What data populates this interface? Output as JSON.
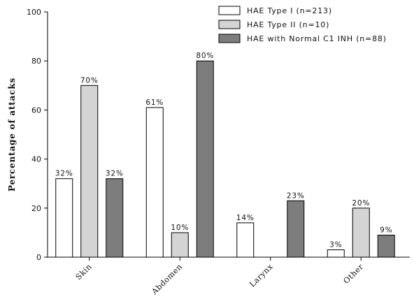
{
  "chart_data": {
    "type": "bar",
    "ylabel": "Percentage of attacks",
    "xlabel": "",
    "ylim": [
      0,
      100
    ],
    "yticks": [
      0,
      20,
      40,
      60,
      80,
      100
    ],
    "categories": [
      "Skin",
      "Abdomen",
      "Larynx",
      "Other"
    ],
    "series": [
      {
        "name": "HAE Type I (n=213)",
        "color": "#ffffff",
        "values": [
          32,
          61,
          14,
          3
        ],
        "labels": [
          "32%",
          "61%",
          "14%",
          "3%"
        ]
      },
      {
        "name": "HAE Type II (n=10)",
        "color": "#d4d4d4",
        "values": [
          70,
          10,
          0,
          20
        ],
        "labels": [
          "70%",
          "10%",
          "",
          "20%"
        ]
      },
      {
        "name": "HAE with Normal C1 INH (n=88)",
        "color": "#7d7d7d",
        "values": [
          32,
          80,
          23,
          9
        ],
        "labels": [
          "32%",
          "80%",
          "23%",
          "9%"
        ]
      }
    ],
    "legend": "top-right",
    "grid": false
  }
}
